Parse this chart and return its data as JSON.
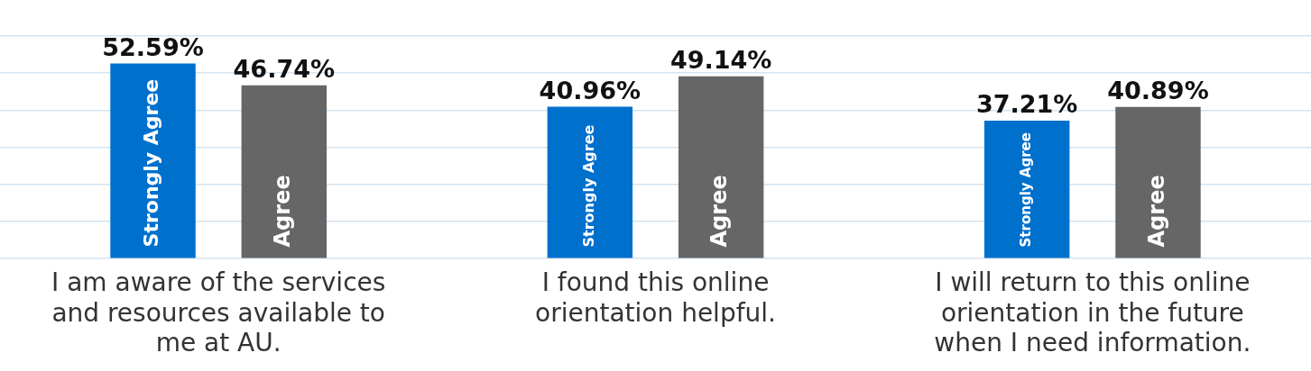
{
  "chart_data": {
    "type": "bar",
    "categories": [
      "I am aware of the services and resources available to me at AU.",
      "I found this online orientation helpful.",
      "I will return to this online orientation in the future when I need information."
    ],
    "series": [
      {
        "name": "Strongly Agree",
        "color": "#0070cd",
        "values": [
          52.59,
          40.96,
          37.21
        ],
        "value_labels": [
          "52.59%",
          "40.96%",
          "37.21%"
        ]
      },
      {
        "name": "Agree",
        "color": "#666666",
        "values": [
          46.74,
          49.14,
          40.89
        ],
        "value_labels": [
          "46.74%",
          "49.14%",
          "40.89%"
        ]
      }
    ],
    "grid": "y",
    "legend": false,
    "tick_labels": "x"
  }
}
